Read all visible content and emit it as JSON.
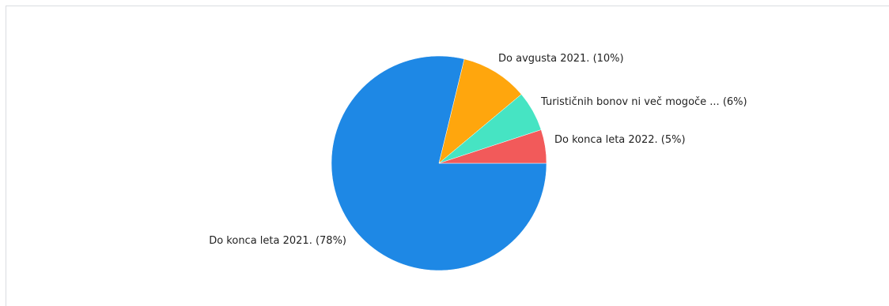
{
  "chart_data": {
    "type": "pie",
    "title": "",
    "categories": [
      "Do konca leta 2021.",
      "Do avgusta 2021.",
      "Turističnih bonov ni več mogoče ...",
      "Do konca leta 2022."
    ],
    "values": [
      78,
      10,
      6,
      5
    ],
    "labels": [
      "Do konca leta 2021. (78%)",
      "Do avgusta 2021. (10%)",
      "Turističnih bonov ni več mogoče ... (6%)",
      "Do konca leta 2022. (5%)"
    ],
    "colors": [
      "#1e88e5",
      "#ffa60d",
      "#46e4c3",
      "#f25a5a"
    ],
    "start": "3 o'clock",
    "direction": "counterclockwise for small slices",
    "legend": "none"
  }
}
